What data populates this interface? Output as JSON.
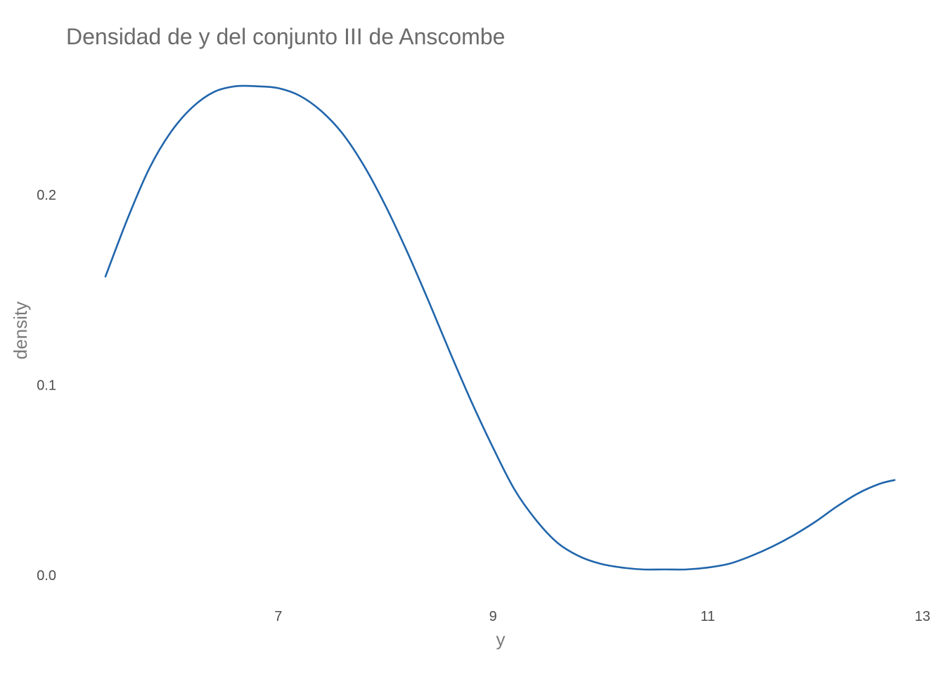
{
  "chart_data": {
    "type": "line",
    "title": "Densidad de y del conjunto III de Anscombe",
    "xlabel": "y",
    "ylabel": "density",
    "xlim": [
      5.39,
      13.0
    ],
    "ylim": [
      0.0,
      0.258
    ],
    "x_ticks": [
      7,
      9,
      11,
      13
    ],
    "x_tick_labels": [
      "7",
      "9",
      "11",
      "13"
    ],
    "y_ticks": [
      0.0,
      0.1,
      0.2
    ],
    "y_tick_labels": [
      "0.0",
      "0.1",
      "0.2"
    ],
    "grid": false,
    "line_color": "#2166ac",
    "series": [
      {
        "x": [
          5.39,
          5.6,
          5.8,
          6.0,
          6.2,
          6.4,
          6.6,
          6.8,
          7.0,
          7.2,
          7.4,
          7.6,
          7.8,
          8.0,
          8.2,
          8.4,
          8.6,
          8.8,
          9.0,
          9.2,
          9.4,
          9.6,
          9.8,
          10.0,
          10.2,
          10.4,
          10.6,
          10.8,
          11.0,
          11.2,
          11.4,
          11.6,
          11.8,
          12.0,
          12.2,
          12.4,
          12.6,
          12.74
        ],
        "values": [
          0.157,
          0.188,
          0.214,
          0.233,
          0.246,
          0.254,
          0.257,
          0.257,
          0.256,
          0.252,
          0.244,
          0.232,
          0.215,
          0.194,
          0.17,
          0.144,
          0.117,
          0.091,
          0.067,
          0.045,
          0.029,
          0.017,
          0.01,
          0.006,
          0.004,
          0.003,
          0.003,
          0.003,
          0.004,
          0.006,
          0.01,
          0.015,
          0.021,
          0.028,
          0.036,
          0.043,
          0.048,
          0.05
        ]
      }
    ]
  }
}
